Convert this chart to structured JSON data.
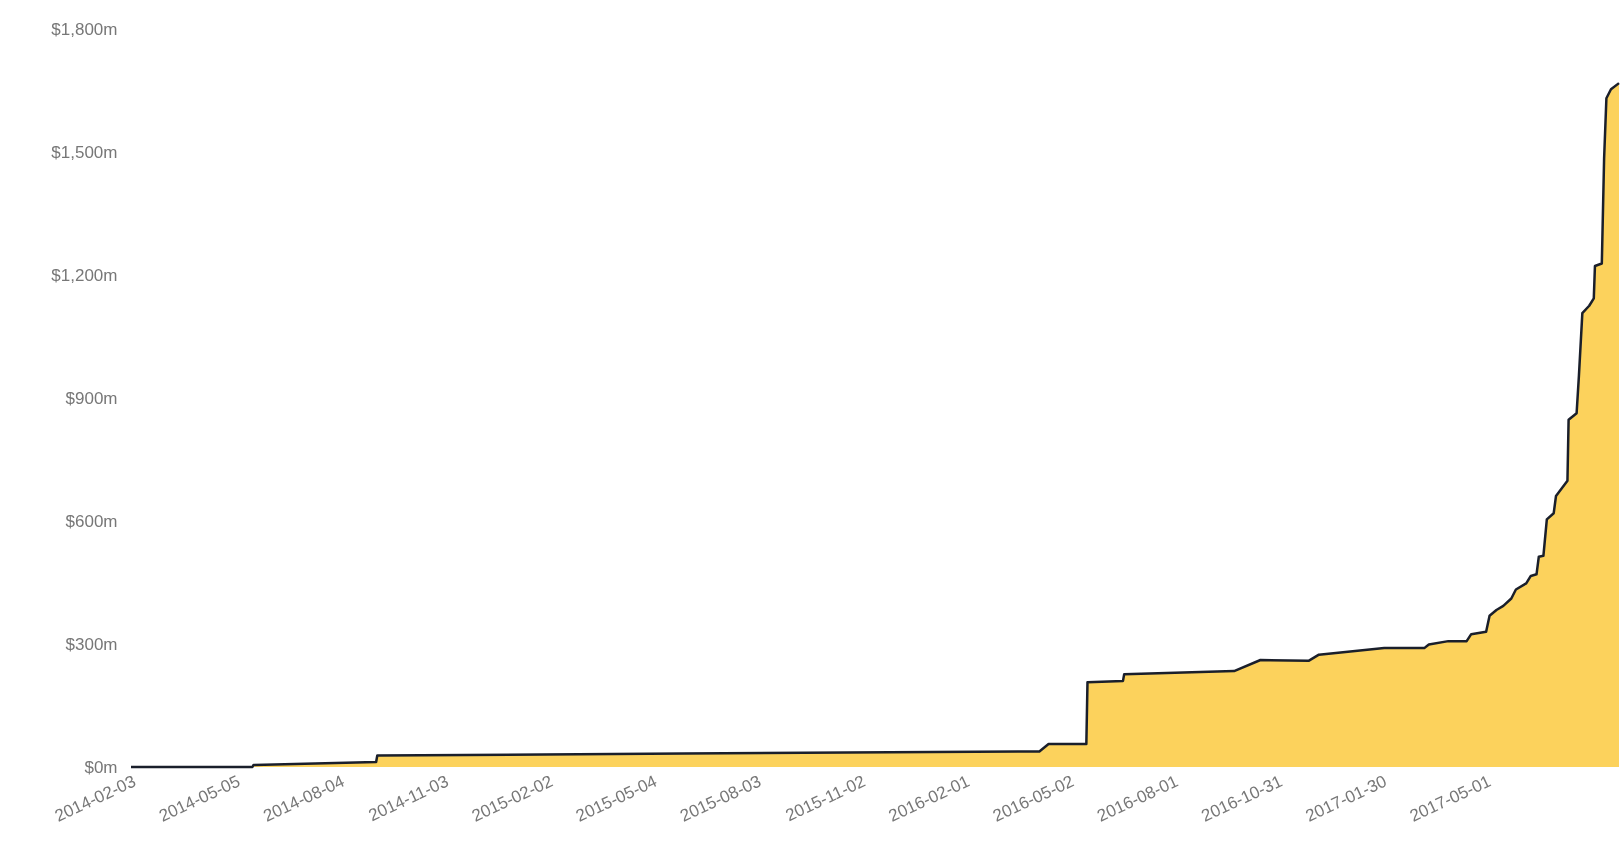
{
  "chart_data": {
    "type": "area",
    "x": [
      "2014-02-03",
      "2014-05-20",
      "2014-05-21",
      "2014-09-05",
      "2014-09-06",
      "2015-06-01",
      "2016-04-06",
      "2016-04-14",
      "2016-05-17",
      "2016-05-18",
      "2016-06-18",
      "2016-06-19",
      "2016-09-23",
      "2016-10-16",
      "2016-11-27",
      "2016-12-06",
      "2017-02-01",
      "2017-03-08",
      "2017-03-12",
      "2017-03-29",
      "2017-04-14",
      "2017-04-18",
      "2017-05-01",
      "2017-05-04",
      "2017-05-10",
      "2017-05-16",
      "2017-05-23",
      "2017-05-27",
      "2017-06-05",
      "2017-06-09",
      "2017-06-14",
      "2017-06-16",
      "2017-06-20",
      "2017-06-23",
      "2017-06-29",
      "2017-07-01",
      "2017-07-11",
      "2017-07-12",
      "2017-07-19",
      "2017-07-21",
      "2017-07-24",
      "2017-07-30",
      "2017-08-03",
      "2017-08-04",
      "2017-08-10",
      "2017-08-12",
      "2017-08-14",
      "2017-08-18",
      "2017-08-25"
    ],
    "series": [
      {
        "color": "#fcd25c",
        "values": [
          0,
          0,
          5,
          12,
          28,
          33,
          38,
          56,
          56,
          207,
          210,
          226,
          234,
          261,
          259,
          274,
          290,
          290,
          299,
          307,
          307,
          324,
          330,
          369,
          383,
          393,
          411,
          433,
          448,
          466,
          470,
          513,
          515,
          604,
          619,
          661,
          698,
          847,
          863,
          954,
          1107,
          1125,
          1143,
          1222,
          1228,
          1484,
          1631,
          1653,
          1668
        ]
      }
    ],
    "xlim": [
      "2014-02-03",
      "2017-08-25"
    ],
    "xticks": [
      "2014-02-03",
      "2014-05-05",
      "2014-08-04",
      "2014-11-03",
      "2015-02-02",
      "2015-05-04",
      "2015-08-03",
      "2015-11-02",
      "2016-02-01",
      "2016-05-02",
      "2016-08-01",
      "2016-10-31",
      "2017-01-30",
      "2017-05-01"
    ],
    "ylim": [
      0,
      1800
    ],
    "yticks": [
      {
        "value": 0,
        "label": "$0m"
      },
      {
        "value": 300,
        "label": "$300m"
      },
      {
        "value": 600,
        "label": "$600m"
      },
      {
        "value": 900,
        "label": "$900m"
      },
      {
        "value": 1200,
        "label": "$1,200m"
      },
      {
        "value": 1500,
        "label": "$1,500m"
      },
      {
        "value": 1800,
        "label": "$1,800m"
      }
    ],
    "grid": false
  }
}
